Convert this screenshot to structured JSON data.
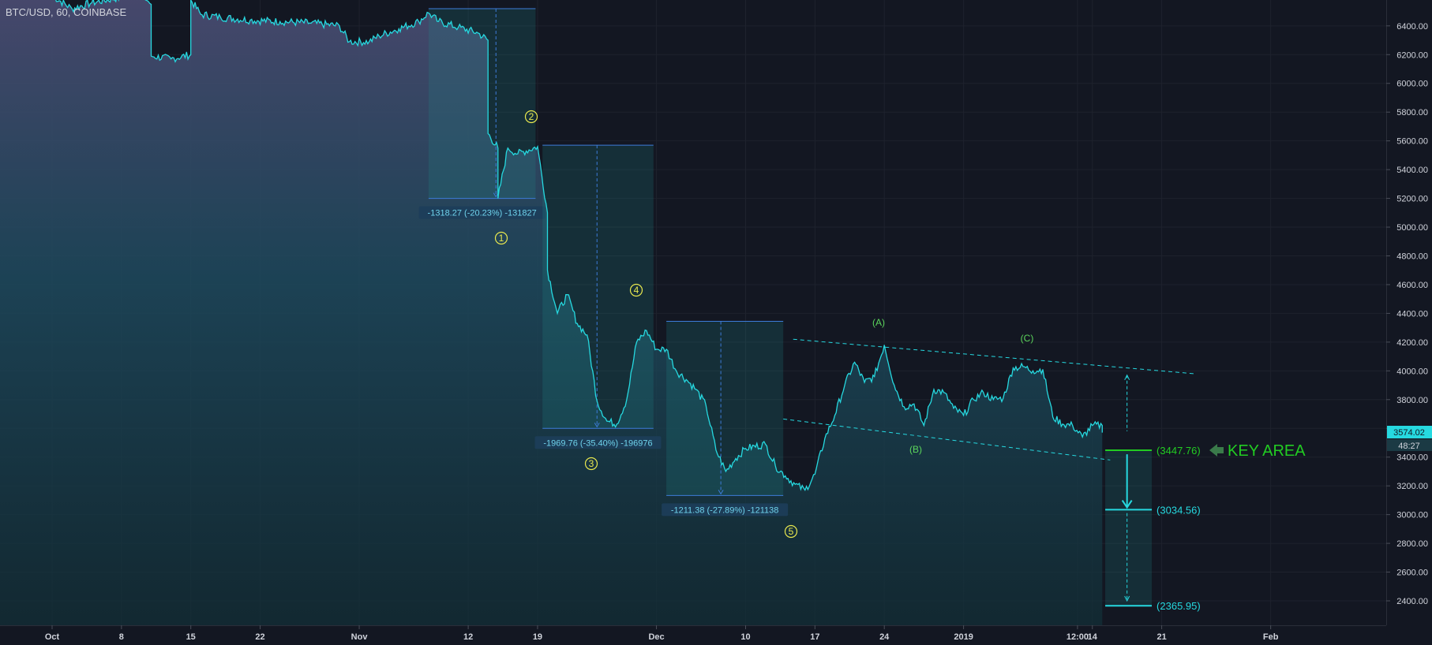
{
  "chart_data": {
    "type": "line",
    "symbol": "BTC/USD, 60, COINBASE",
    "x_tick_labels": [
      "Oct",
      "8",
      "15",
      "22",
      "Nov",
      "12",
      "19",
      "Dec",
      "10",
      "17",
      "24",
      "2019",
      "12:00",
      "14",
      "21",
      "Feb"
    ],
    "y_tick_labels": [
      "6400.00",
      "6200.00",
      "6000.00",
      "5800.00",
      "5600.00",
      "5400.00",
      "5200.00",
      "5000.00",
      "4800.00",
      "4600.00",
      "4400.00",
      "4200.00",
      "4000.00",
      "3800.00",
      "3600.00",
      "3400.00",
      "3200.00",
      "3000.00",
      "2800.00",
      "2600.00",
      "2400.00"
    ],
    "ylim": [
      2230,
      6580
    ],
    "last_price_tag": "3574.02",
    "countdown_tag": "48:27",
    "series": [
      {
        "color": "#26d9e0",
        "points": [
          [
            "2018-10-01",
            6610
          ],
          [
            "2018-10-03",
            6520
          ],
          [
            "2018-10-05",
            6560
          ],
          [
            "2018-10-08",
            6600
          ],
          [
            "2018-10-10",
            6620
          ],
          [
            "2018-10-11",
            6550
          ],
          [
            "2018-10-11",
            6190
          ],
          [
            "2018-10-13",
            6170
          ],
          [
            "2018-10-15",
            6200
          ],
          [
            "2018-10-15",
            6580
          ],
          [
            "2018-10-16",
            6480
          ],
          [
            "2018-10-18",
            6460
          ],
          [
            "2018-10-21",
            6440
          ],
          [
            "2018-10-24",
            6430
          ],
          [
            "2018-10-27",
            6420
          ],
          [
            "2018-10-30",
            6400
          ],
          [
            "2018-10-31",
            6290
          ],
          [
            "2018-11-02",
            6290
          ],
          [
            "2018-11-03",
            6330
          ],
          [
            "2018-11-05",
            6380
          ],
          [
            "2018-11-07",
            6430
          ],
          [
            "2018-11-08",
            6490
          ],
          [
            "2018-11-09",
            6430
          ],
          [
            "2018-11-11",
            6390
          ],
          [
            "2018-11-13",
            6350
          ],
          [
            "2018-11-14",
            6300
          ],
          [
            "2018-11-14",
            5650
          ],
          [
            "2018-11-15",
            5550
          ],
          [
            "2018-11-15",
            5200
          ],
          [
            "2018-11-16",
            5550
          ],
          [
            "2018-11-17",
            5510
          ],
          [
            "2018-11-19",
            5560
          ],
          [
            "2018-11-20",
            5100
          ],
          [
            "2018-11-20",
            4700
          ],
          [
            "2018-11-21",
            4400
          ],
          [
            "2018-11-22",
            4530
          ],
          [
            "2018-11-23",
            4330
          ],
          [
            "2018-11-24",
            4250
          ],
          [
            "2018-11-25",
            3790
          ],
          [
            "2018-11-26",
            3650
          ],
          [
            "2018-11-27",
            3630
          ],
          [
            "2018-11-28",
            3800
          ],
          [
            "2018-11-29",
            4200
          ],
          [
            "2018-11-30",
            4280
          ],
          [
            "2018-12-01",
            4150
          ],
          [
            "2018-12-02",
            4150
          ],
          [
            "2018-12-03",
            4000
          ],
          [
            "2018-12-04",
            3940
          ],
          [
            "2018-12-05",
            3870
          ],
          [
            "2018-12-06",
            3760
          ],
          [
            "2018-12-07",
            3450
          ],
          [
            "2018-12-08",
            3300
          ],
          [
            "2018-12-09",
            3390
          ],
          [
            "2018-12-10",
            3460
          ],
          [
            "2018-12-12",
            3490
          ],
          [
            "2018-12-13",
            3340
          ],
          [
            "2018-12-14",
            3270
          ],
          [
            "2018-12-15",
            3210
          ],
          [
            "2018-12-16",
            3170
          ],
          [
            "2018-12-17",
            3280
          ],
          [
            "2018-12-18",
            3530
          ],
          [
            "2018-12-19",
            3690
          ],
          [
            "2018-12-20",
            3900
          ],
          [
            "2018-12-21",
            4060
          ],
          [
            "2018-12-22",
            3920
          ],
          [
            "2018-12-23",
            3960
          ],
          [
            "2018-12-24",
            4180
          ],
          [
            "2018-12-25",
            3900
          ],
          [
            "2018-12-26",
            3750
          ],
          [
            "2018-12-27",
            3770
          ],
          [
            "2018-12-28",
            3620
          ],
          [
            "2018-12-29",
            3870
          ],
          [
            "2018-12-30",
            3850
          ],
          [
            "2018-12-31",
            3740
          ],
          [
            "2019-01-01",
            3690
          ],
          [
            "2019-01-02",
            3800
          ],
          [
            "2019-01-03",
            3850
          ],
          [
            "2019-01-04",
            3800
          ],
          [
            "2019-01-05",
            3810
          ],
          [
            "2019-01-06",
            4020
          ],
          [
            "2019-01-07",
            4030
          ],
          [
            "2019-01-08",
            4000
          ],
          [
            "2019-01-09",
            4010
          ],
          [
            "2019-01-10",
            3680
          ],
          [
            "2019-01-11",
            3630
          ],
          [
            "2019-01-12",
            3620
          ],
          [
            "2019-01-13",
            3540
          ],
          [
            "2019-01-14",
            3620
          ],
          [
            "2019-01-15",
            3620
          ],
          [
            "2019-01-15",
            3574
          ]
        ]
      }
    ],
    "measurements": [
      {
        "label": "-1318.27 (-20.23%) -131827"
      },
      {
        "label": "-1969.76 (-35.40%) -196976"
      },
      {
        "label": "-1211.38 (-27.89%) -121138"
      }
    ],
    "wave_labels": [
      "1",
      "2",
      "3",
      "4",
      "5"
    ],
    "corrective_labels": [
      "(A)",
      "(B)",
      "(C)"
    ],
    "levels": [
      {
        "value": 3447.76,
        "label": "(3447.76)",
        "color": "#22cc22"
      },
      {
        "value": 3034.56,
        "label": "(3034.56)",
        "color": "#26d9e0"
      },
      {
        "value": 2365.95,
        "label": "(2365.95)",
        "color": "#26d9e0"
      }
    ],
    "key_area_label": "KEY AREA"
  }
}
